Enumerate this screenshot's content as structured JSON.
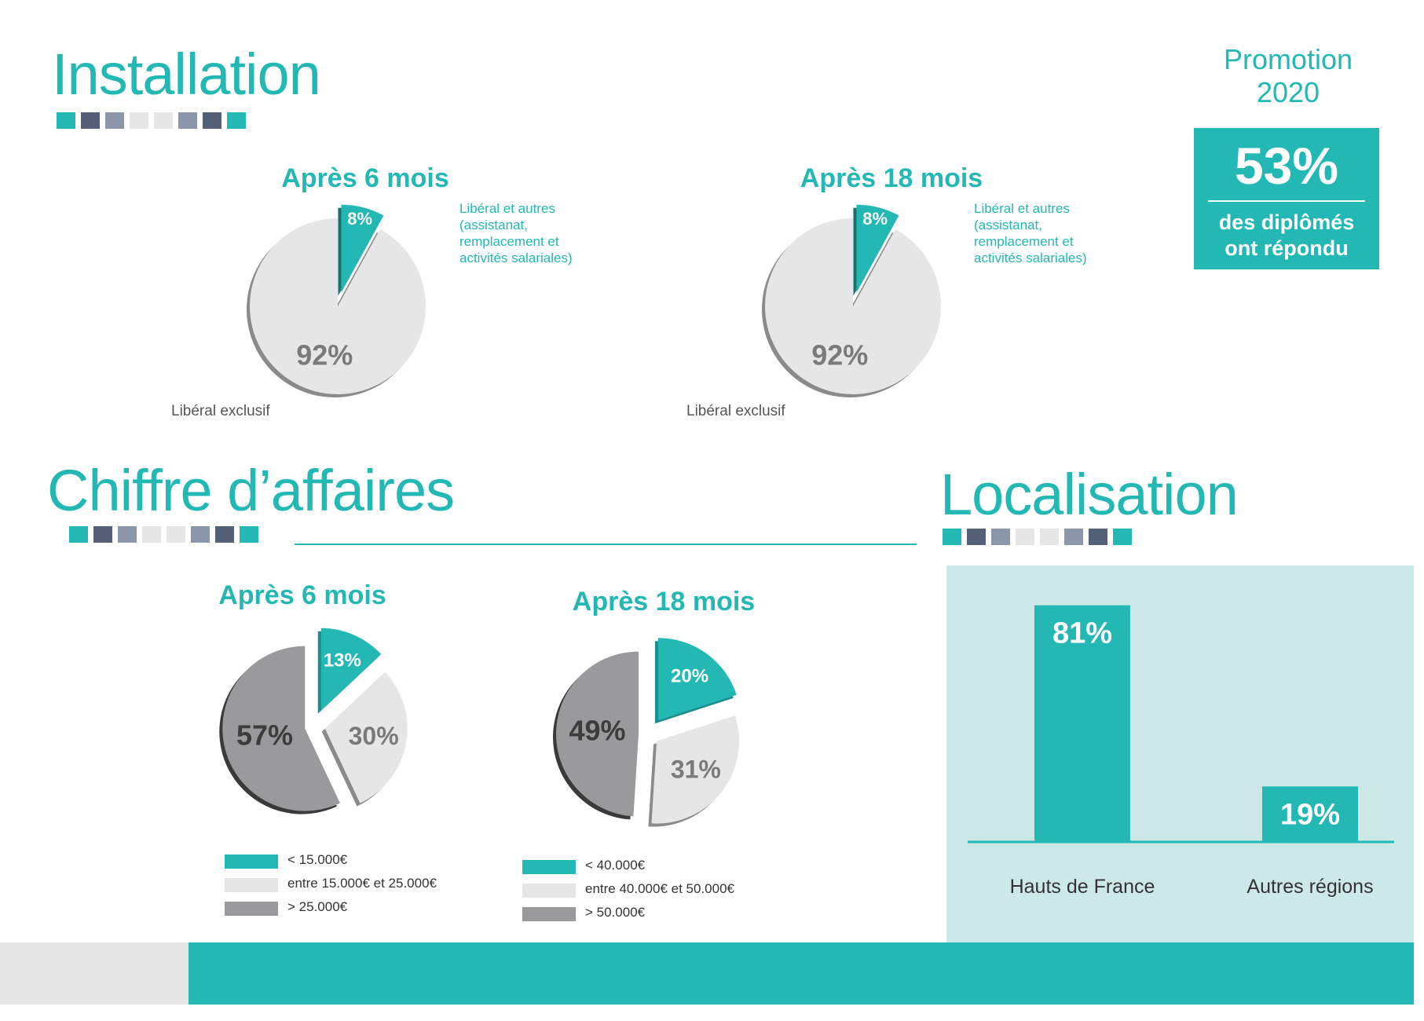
{
  "colors": {
    "teal": "#23b8b3",
    "dark_slate": "#546075",
    "slate": "#8b96ab",
    "light_grey": "#e6e6e6",
    "mid_grey": "#9a9a9c",
    "panel_bg": "#cce9e8"
  },
  "swatch_pattern": [
    "#23b8b3",
    "#546075",
    "#8b96ab",
    "#e6e6e6",
    "#e6e6e6",
    "#8b96ab",
    "#546075",
    "#23b8b3"
  ],
  "sections": {
    "installation": "Installation",
    "chiffre": "Chiffre d’affaires",
    "localisation": "Localisation"
  },
  "promotion": {
    "line1": "Promotion",
    "line2": "2020",
    "percent": "53%",
    "line3": "des diplômés",
    "line4": "ont répondu"
  },
  "installation_note": {
    "line1": "Libéral et autres",
    "line2": "(assistanat,",
    "line3": "remplacement et",
    "line4": "activités salariales)",
    "exclusive": "Libéral exclusif"
  },
  "chiffre_legend_6": [
    "< 15.000€",
    "entre 15.000€ et 25.000€",
    "> 25.000€"
  ],
  "chiffre_legend_18": [
    "< 40.000€",
    "entre 40.000€ et 50.000€",
    "> 50.000€"
  ],
  "chart_data": [
    {
      "type": "pie",
      "title": "Après 6 mois",
      "categories": [
        "Libéral et autres (assistanat, remplacement et activités salariales)",
        "Libéral exclusif"
      ],
      "values": [
        8,
        92
      ],
      "labels": [
        "8%",
        "92%"
      ]
    },
    {
      "type": "pie",
      "title": "Après 18 mois",
      "categories": [
        "Libéral et autres (assistanat, remplacement et activités salariales)",
        "Libéral exclusif"
      ],
      "values": [
        8,
        92
      ],
      "labels": [
        "8%",
        "92%"
      ]
    },
    {
      "type": "pie",
      "title": "Après 6 mois",
      "categories": [
        "< 15.000€",
        "entre 15.000€ et 25.000€",
        "> 25.000€"
      ],
      "values": [
        13,
        30,
        57
      ],
      "labels": [
        "13%",
        "30%",
        "57%"
      ]
    },
    {
      "type": "pie",
      "title": "Après 18 mois",
      "categories": [
        "< 40.000€",
        "entre 40.000€ et 50.000€",
        "> 50.000€"
      ],
      "values": [
        20,
        31,
        49
      ],
      "labels": [
        "20%",
        "31%",
        "49%"
      ]
    },
    {
      "type": "bar",
      "categories": [
        "Hauts de France",
        "Autres régions"
      ],
      "values": [
        81,
        19
      ],
      "labels": [
        "81%",
        "19%"
      ],
      "ylim": [
        0,
        100
      ]
    }
  ]
}
